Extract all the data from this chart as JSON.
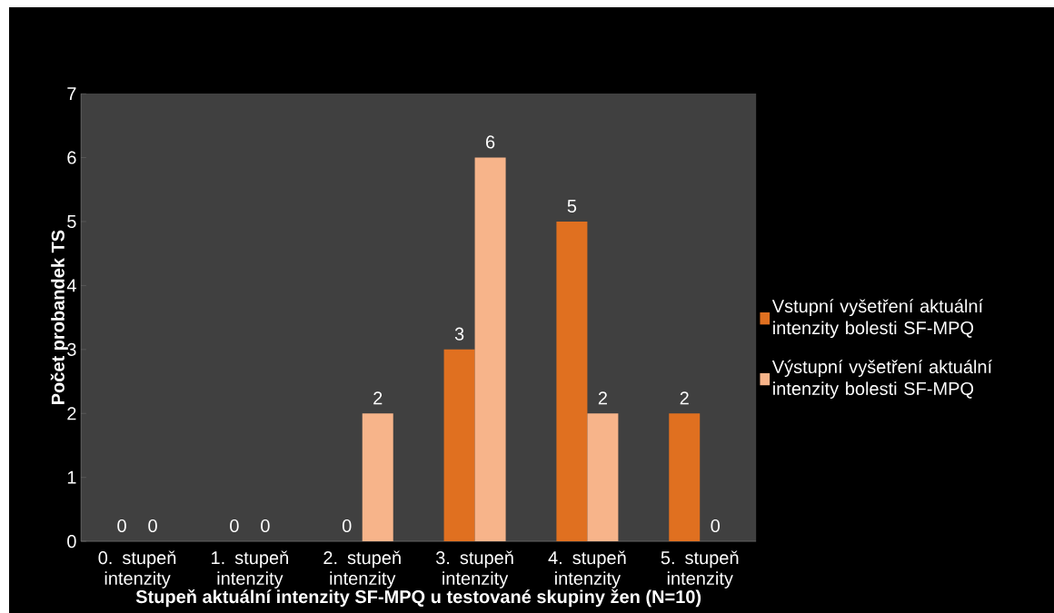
{
  "chart_data": {
    "type": "bar",
    "xlabel": "Stupeň aktuální intenzity SF-MPQ u testované skupiny žen (N=10)",
    "ylabel": "Počet probandek TS",
    "categories": [
      "0. stupeň intenzity",
      "1. stupeň intenzity",
      "2. stupeň intenzity",
      "3. stupeň intenzity",
      "4. stupeň intenzity",
      "5. stupeň intenzity"
    ],
    "series": [
      {
        "name": "Vstupní vyšetření aktuální intenzity bolesti SF-MPQ",
        "color": "#e07020",
        "values": [
          0,
          0,
          0,
          3,
          5,
          2
        ]
      },
      {
        "name": "Výstupní vyšetření aktuální intenzity bolesti SF-MPQ",
        "color": "#f7b48a",
        "values": [
          0,
          0,
          2,
          6,
          2,
          0
        ]
      }
    ],
    "ylim": [
      0,
      7
    ],
    "yticks": [
      0,
      1,
      2,
      3,
      4,
      5,
      6,
      7
    ],
    "data_labels": true,
    "legend": "right",
    "grid": false
  }
}
